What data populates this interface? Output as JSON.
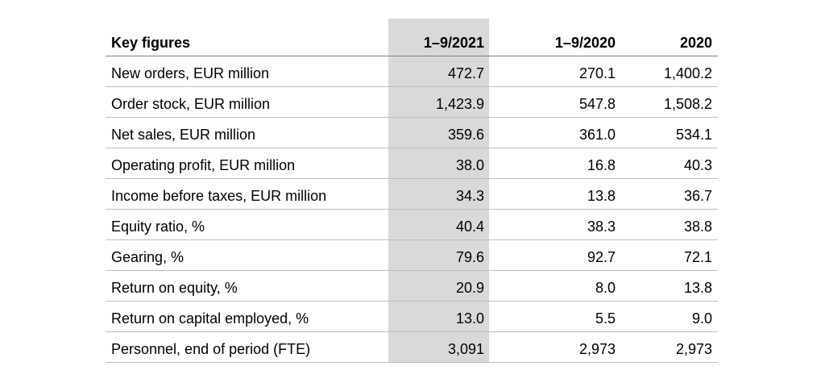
{
  "table": {
    "headers": [
      "Key figures",
      "1–9/2021",
      "1–9/2020",
      "2020"
    ],
    "rows": [
      [
        "New orders, EUR million",
        "472.7",
        "270.1",
        "1,400.2"
      ],
      [
        "Order stock, EUR million",
        "1,423.9",
        "547.8",
        "1,508.2"
      ],
      [
        "Net sales, EUR million",
        "359.6",
        "361.0",
        "534.1"
      ],
      [
        "Operating profit, EUR million",
        "38.0",
        "16.8",
        "40.3"
      ],
      [
        "Income before taxes, EUR million",
        "34.3",
        "13.8",
        "36.7"
      ],
      [
        "Equity ratio, %",
        "40.4",
        "38.3",
        "38.8"
      ],
      [
        "Gearing, %",
        "79.6",
        "92.7",
        "72.1"
      ],
      [
        "Return on equity, %",
        "20.9",
        "8.0",
        "13.8"
      ],
      [
        "Return on capital employed, %",
        "13.0",
        "5.5",
        "9.0"
      ],
      [
        "Personnel, end of period (FTE)",
        "3,091",
        "2,973",
        "2,973"
      ]
    ],
    "highlight_color": "#d9d9d9"
  }
}
